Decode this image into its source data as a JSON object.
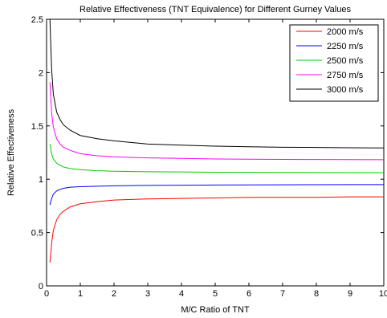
{
  "chart_data": {
    "type": "line",
    "title": "Relative Effectiveness (TNT Equivalence) for Different Gurney Values",
    "xlabel": "M/C Ratio of TNT",
    "ylabel": "Relative Effectiveness",
    "xlim": [
      0,
      10
    ],
    "ylim": [
      0,
      2.5
    ],
    "xticks": [
      0,
      1,
      2,
      3,
      4,
      5,
      6,
      7,
      8,
      9,
      10
    ],
    "yticks": [
      0,
      0.5,
      1,
      1.5,
      2,
      2.5
    ],
    "xtick_labels": [
      "0",
      "1",
      "2",
      "3",
      "4",
      "5",
      "6",
      "7",
      "8",
      "9",
      "10"
    ],
    "ytick_labels": [
      "0",
      "0.5",
      "1",
      "1.5",
      "2",
      "2.5"
    ],
    "grid": false,
    "legend_position": "top-right",
    "x": [
      0.1,
      0.15,
      0.2,
      0.3,
      0.4,
      0.5,
      0.7,
      1,
      1.5,
      2,
      2.5,
      3,
      4,
      5,
      6,
      7,
      8,
      9,
      10
    ],
    "series": [
      {
        "name": "2000 m/s",
        "color": "#ff0000",
        "values": [
          0.22,
          0.4,
          0.52,
          0.62,
          0.67,
          0.7,
          0.74,
          0.77,
          0.79,
          0.805,
          0.81,
          0.815,
          0.82,
          0.825,
          0.83,
          0.83,
          0.83,
          0.835,
          0.835
        ]
      },
      {
        "name": "2250 m/s",
        "color": "#0000ff",
        "values": [
          0.76,
          0.82,
          0.86,
          0.89,
          0.905,
          0.915,
          0.925,
          0.93,
          0.935,
          0.938,
          0.94,
          0.942,
          0.944,
          0.946,
          0.947,
          0.948,
          0.949,
          0.95,
          0.95
        ]
      },
      {
        "name": "2500 m/s",
        "color": "#00cc00",
        "values": [
          1.33,
          1.24,
          1.19,
          1.15,
          1.13,
          1.115,
          1.1,
          1.09,
          1.08,
          1.075,
          1.072,
          1.07,
          1.068,
          1.066,
          1.065,
          1.064,
          1.063,
          1.062,
          1.062
        ]
      },
      {
        "name": "2750 m/s",
        "color": "#ff00ff",
        "values": [
          1.91,
          1.62,
          1.49,
          1.38,
          1.33,
          1.3,
          1.27,
          1.24,
          1.22,
          1.21,
          1.205,
          1.2,
          1.195,
          1.19,
          1.188,
          1.186,
          1.185,
          1.184,
          1.183
        ]
      },
      {
        "name": "3000 m/s",
        "color": "#000000",
        "values": [
          2.5,
          2.03,
          1.8,
          1.63,
          1.56,
          1.51,
          1.46,
          1.41,
          1.38,
          1.36,
          1.345,
          1.33,
          1.32,
          1.31,
          1.305,
          1.3,
          1.298,
          1.295,
          1.293
        ]
      }
    ]
  }
}
